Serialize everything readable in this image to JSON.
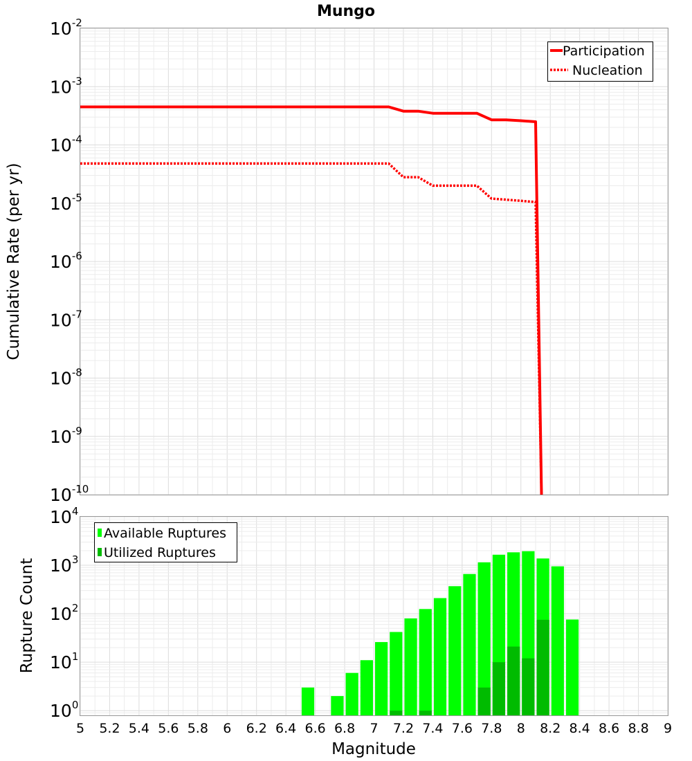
{
  "chart_data": [
    {
      "type": "line",
      "title": "Mungo",
      "xlabel": "Magnitude",
      "ylabel": "Cumulative Rate (per yr)",
      "xlim": [
        5,
        9
      ],
      "ylim": [
        1e-10,
        0.01
      ],
      "yscale": "log",
      "ytick_labels": [
        {
          "base": "10",
          "exp": "-2"
        },
        {
          "base": "10",
          "exp": "-3"
        },
        {
          "base": "10",
          "exp": "-4"
        },
        {
          "base": "10",
          "exp": "-5"
        },
        {
          "base": "10",
          "exp": "-6"
        },
        {
          "base": "10",
          "exp": "-7"
        },
        {
          "base": "10",
          "exp": "-8"
        },
        {
          "base": "10",
          "exp": "-9"
        },
        {
          "base": "10",
          "exp": "-10"
        }
      ],
      "legend": {
        "position": "top-right",
        "entries": [
          "Participation",
          "Nucleation"
        ]
      },
      "series": [
        {
          "name": "Participation",
          "color": "#ff0000",
          "style": "solid",
          "x": [
            5.0,
            7.1,
            7.2,
            7.3,
            7.4,
            7.5,
            7.6,
            7.7,
            7.8,
            7.9,
            8.0,
            8.1,
            8.14
          ],
          "y": [
            0.00045,
            0.00045,
            0.00038,
            0.00038,
            0.00035,
            0.00035,
            0.00035,
            0.00035,
            0.00027,
            0.00027,
            0.00026,
            0.00025,
            1e-10
          ]
        },
        {
          "name": "Nucleation",
          "color": "#ff0000",
          "style": "dotted",
          "x": [
            5.0,
            7.1,
            7.2,
            7.3,
            7.4,
            7.5,
            7.6,
            7.7,
            7.8,
            7.9,
            8.0,
            8.1,
            8.14
          ],
          "y": [
            4.8e-05,
            4.8e-05,
            2.8e-05,
            2.8e-05,
            2e-05,
            2e-05,
            2e-05,
            2e-05,
            1.2e-05,
            1.15e-05,
            1.1e-05,
            1.05e-05,
            1e-10
          ]
        }
      ]
    },
    {
      "type": "bar",
      "xlabel": "Magnitude",
      "ylabel": "Rupture Count",
      "xlim": [
        5,
        9
      ],
      "ylim": [
        0.8,
        10000
      ],
      "yscale": "log",
      "xticks": [
        "5",
        "5.2",
        "5.4",
        "5.6",
        "5.8",
        "6",
        "6.2",
        "6.4",
        "6.6",
        "6.8",
        "7",
        "7.2",
        "7.4",
        "7.6",
        "7.8",
        "8",
        "8.2",
        "8.4",
        "8.6",
        "8.8",
        "9"
      ],
      "ytick_labels": [
        {
          "base": "10",
          "exp": "4"
        },
        {
          "base": "10",
          "exp": "3"
        },
        {
          "base": "10",
          "exp": "2"
        },
        {
          "base": "10",
          "exp": "1"
        },
        {
          "base": "10",
          "exp": "0"
        }
      ],
      "legend": {
        "position": "top-left",
        "entries": [
          "Available Ruptures",
          "Utilized Ruptures"
        ]
      },
      "bin_width": 0.1,
      "series": [
        {
          "name": "Available Ruptures",
          "color": "#00ff00",
          "x": [
            6.55,
            6.75,
            6.85,
            6.95,
            7.05,
            7.15,
            7.25,
            7.35,
            7.45,
            7.55,
            7.65,
            7.75,
            7.85,
            7.95,
            8.05,
            8.15,
            8.25,
            8.35
          ],
          "values": [
            3,
            2,
            6,
            11,
            26,
            42,
            80,
            125,
            210,
            370,
            660,
            1150,
            1650,
            1850,
            1950,
            1380,
            950,
            76
          ]
        },
        {
          "name": "Utilized Ruptures",
          "color": "#00bb00",
          "x": [
            7.15,
            7.35,
            7.75,
            7.85,
            7.95,
            8.05,
            8.15
          ],
          "values": [
            1,
            1,
            3,
            10,
            21,
            12,
            75
          ]
        }
      ]
    }
  ]
}
